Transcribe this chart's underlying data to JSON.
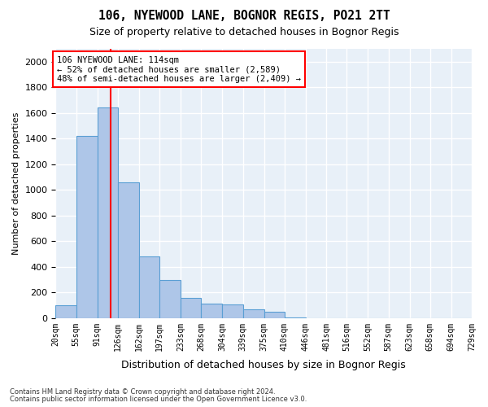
{
  "title": "106, NYEWOOD LANE, BOGNOR REGIS, PO21 2TT",
  "subtitle": "Size of property relative to detached houses in Bognor Regis",
  "xlabel": "Distribution of detached houses by size in Bognor Regis",
  "ylabel": "Number of detached properties",
  "footnote1": "Contains HM Land Registry data © Crown copyright and database right 2024.",
  "footnote2": "Contains public sector information licensed under the Open Government Licence v3.0.",
  "bar_color": "#aec6e8",
  "bar_edge_color": "#5a9fd4",
  "background_color": "#e8f0f8",
  "grid_color": "#ffffff",
  "annotation_text_line1": "106 NYEWOOD LANE: 114sqm",
  "annotation_text_line2": "← 52% of detached houses are smaller (2,589)",
  "annotation_text_line3": "48% of semi-detached houses are larger (2,409) →",
  "property_size": 114,
  "bin_edges": [
    20,
    55,
    91,
    126,
    162,
    197,
    233,
    268,
    304,
    339,
    375,
    410,
    446,
    481,
    516,
    552,
    587,
    623,
    658,
    694,
    729
  ],
  "categories": [
    "20sqm",
    "55sqm",
    "91sqm",
    "126sqm",
    "162sqm",
    "197sqm",
    "233sqm",
    "268sqm",
    "304sqm",
    "339sqm",
    "375sqm",
    "410sqm",
    "446sqm",
    "481sqm",
    "516sqm",
    "552sqm",
    "587sqm",
    "623sqm",
    "658sqm",
    "694sqm",
    "729sqm"
  ],
  "values": [
    100,
    1420,
    1640,
    1060,
    480,
    300,
    155,
    110,
    105,
    70,
    50,
    5,
    0,
    0,
    0,
    0,
    0,
    0,
    0,
    0
  ],
  "ylim": [
    0,
    2100
  ],
  "yticks": [
    0,
    200,
    400,
    600,
    800,
    1000,
    1200,
    1400,
    1600,
    1800,
    2000
  ]
}
